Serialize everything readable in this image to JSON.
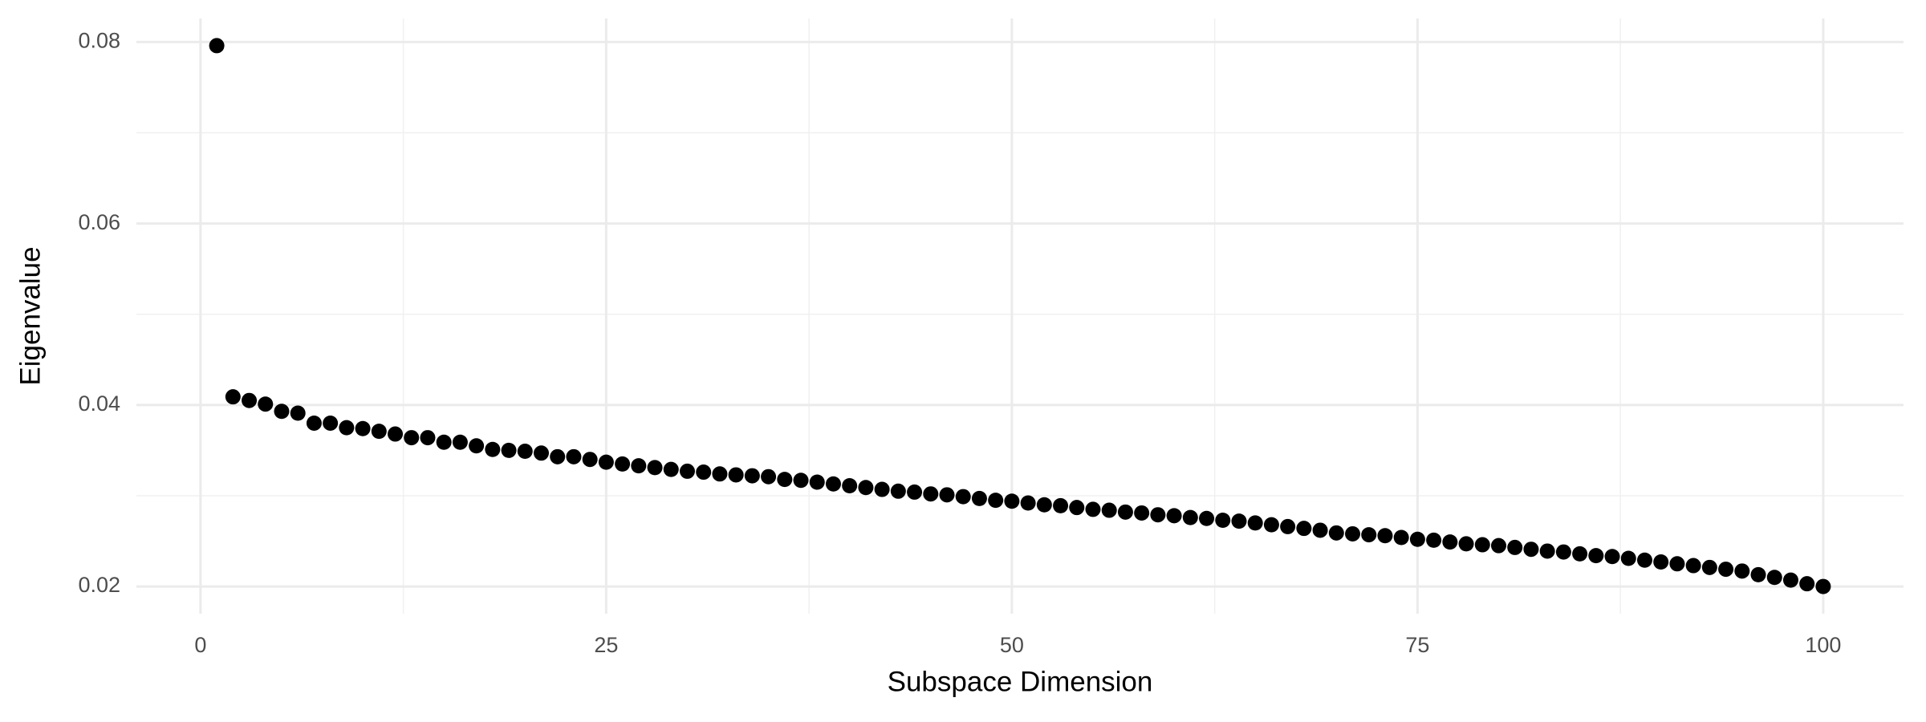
{
  "chart_data": {
    "type": "scatter",
    "x_label": "Subspace Dimension",
    "y_label": "Eigenvalue",
    "x": [
      1,
      2,
      3,
      4,
      5,
      6,
      7,
      8,
      9,
      10,
      11,
      12,
      13,
      14,
      15,
      16,
      17,
      18,
      19,
      20,
      21,
      22,
      23,
      24,
      25,
      26,
      27,
      28,
      29,
      30,
      31,
      32,
      33,
      34,
      35,
      36,
      37,
      38,
      39,
      40,
      41,
      42,
      43,
      44,
      45,
      46,
      47,
      48,
      49,
      50,
      51,
      52,
      53,
      54,
      55,
      56,
      57,
      58,
      59,
      60,
      61,
      62,
      63,
      64,
      65,
      66,
      67,
      68,
      69,
      70,
      71,
      72,
      73,
      74,
      75,
      76,
      77,
      78,
      79,
      80,
      81,
      82,
      83,
      84,
      85,
      86,
      87,
      88,
      89,
      90,
      91,
      92,
      93,
      94,
      95,
      96,
      97,
      98,
      99,
      100
    ],
    "values": [
      0.0796,
      0.0409,
      0.0405,
      0.0401,
      0.0393,
      0.0391,
      0.038,
      0.038,
      0.0375,
      0.0374,
      0.0371,
      0.0368,
      0.0364,
      0.0364,
      0.0359,
      0.0359,
      0.0355,
      0.0351,
      0.035,
      0.0349,
      0.0347,
      0.0343,
      0.0343,
      0.034,
      0.0337,
      0.0335,
      0.0333,
      0.0331,
      0.0329,
      0.0327,
      0.0326,
      0.0324,
      0.0323,
      0.0322,
      0.0321,
      0.0318,
      0.0317,
      0.0315,
      0.0313,
      0.0311,
      0.0309,
      0.0307,
      0.0305,
      0.0304,
      0.0302,
      0.0301,
      0.0299,
      0.0297,
      0.0295,
      0.0294,
      0.0292,
      0.029,
      0.0289,
      0.0287,
      0.0285,
      0.0284,
      0.0282,
      0.0281,
      0.0279,
      0.0278,
      0.0276,
      0.0275,
      0.0273,
      0.0272,
      0.027,
      0.0268,
      0.0266,
      0.0264,
      0.0262,
      0.0259,
      0.0258,
      0.0257,
      0.0256,
      0.0254,
      0.0252,
      0.0251,
      0.0249,
      0.0247,
      0.0246,
      0.0245,
      0.0243,
      0.0241,
      0.0239,
      0.0238,
      0.0236,
      0.0234,
      0.0233,
      0.0231,
      0.0229,
      0.0227,
      0.0225,
      0.0223,
      0.0221,
      0.0219,
      0.0217,
      0.0213,
      0.021,
      0.0207,
      0.0203,
      0.02
    ],
    "color": "#000000",
    "xlim": [
      -3.95,
      104.95
    ],
    "ylim": [
      0.017,
      0.0826
    ],
    "xticks": [
      0,
      25,
      50,
      75,
      100
    ],
    "yticks": [
      0.02,
      0.04,
      0.06,
      0.08
    ],
    "grid": true
  }
}
